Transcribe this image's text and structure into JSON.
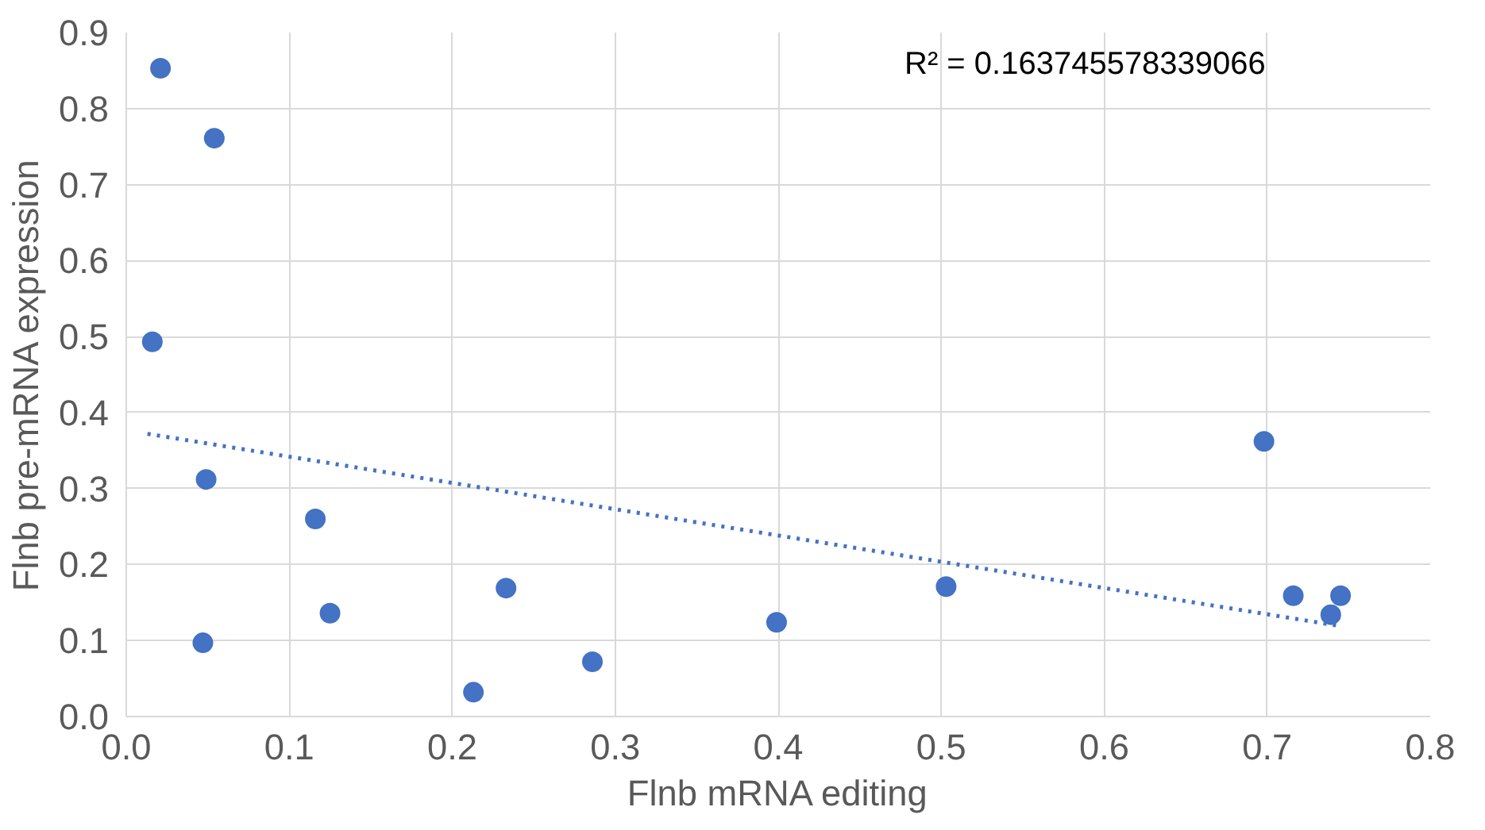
{
  "chart_data": {
    "type": "scatter",
    "xlabel": "Flnb mRNA editing",
    "ylabel": "Flnb pre-mRNA expression",
    "xlim": [
      0,
      0.8
    ],
    "ylim": [
      0,
      0.9
    ],
    "xticks": [
      {
        "value": 0,
        "label": "0.0"
      },
      0.1,
      0.2,
      0.3,
      0.4,
      0.5,
      0.6,
      0.7,
      0.8
    ],
    "yticks": [
      {
        "value": 0,
        "label": "0.0"
      },
      0.1,
      0.2,
      0.3,
      0.4,
      0.5,
      0.6,
      0.7,
      0.8,
      0.9
    ],
    "grid": true,
    "marker": "circle",
    "annotations": [
      "R² = 0.163745578339066"
    ],
    "series": [
      {
        "color": "#4472c4",
        "x": [
          0.021,
          0.054,
          0.016,
          0.049,
          0.047,
          0.116,
          0.125,
          0.213,
          0.233,
          0.286,
          0.399,
          0.503,
          0.698,
          0.716,
          0.739,
          0.745
        ],
        "values": [
          0.853,
          0.761,
          0.493,
          0.312,
          0.097,
          0.26,
          0.136,
          0.032,
          0.169,
          0.072,
          0.124,
          0.171,
          0.362,
          0.159,
          0.134,
          0.159
        ]
      },
      {
        "type": "line",
        "line_style": "dotted",
        "marker": "none",
        "color": "#4472c4",
        "x": [
          0.013,
          0.745
        ],
        "values": [
          0.372,
          0.119
        ]
      }
    ]
  }
}
